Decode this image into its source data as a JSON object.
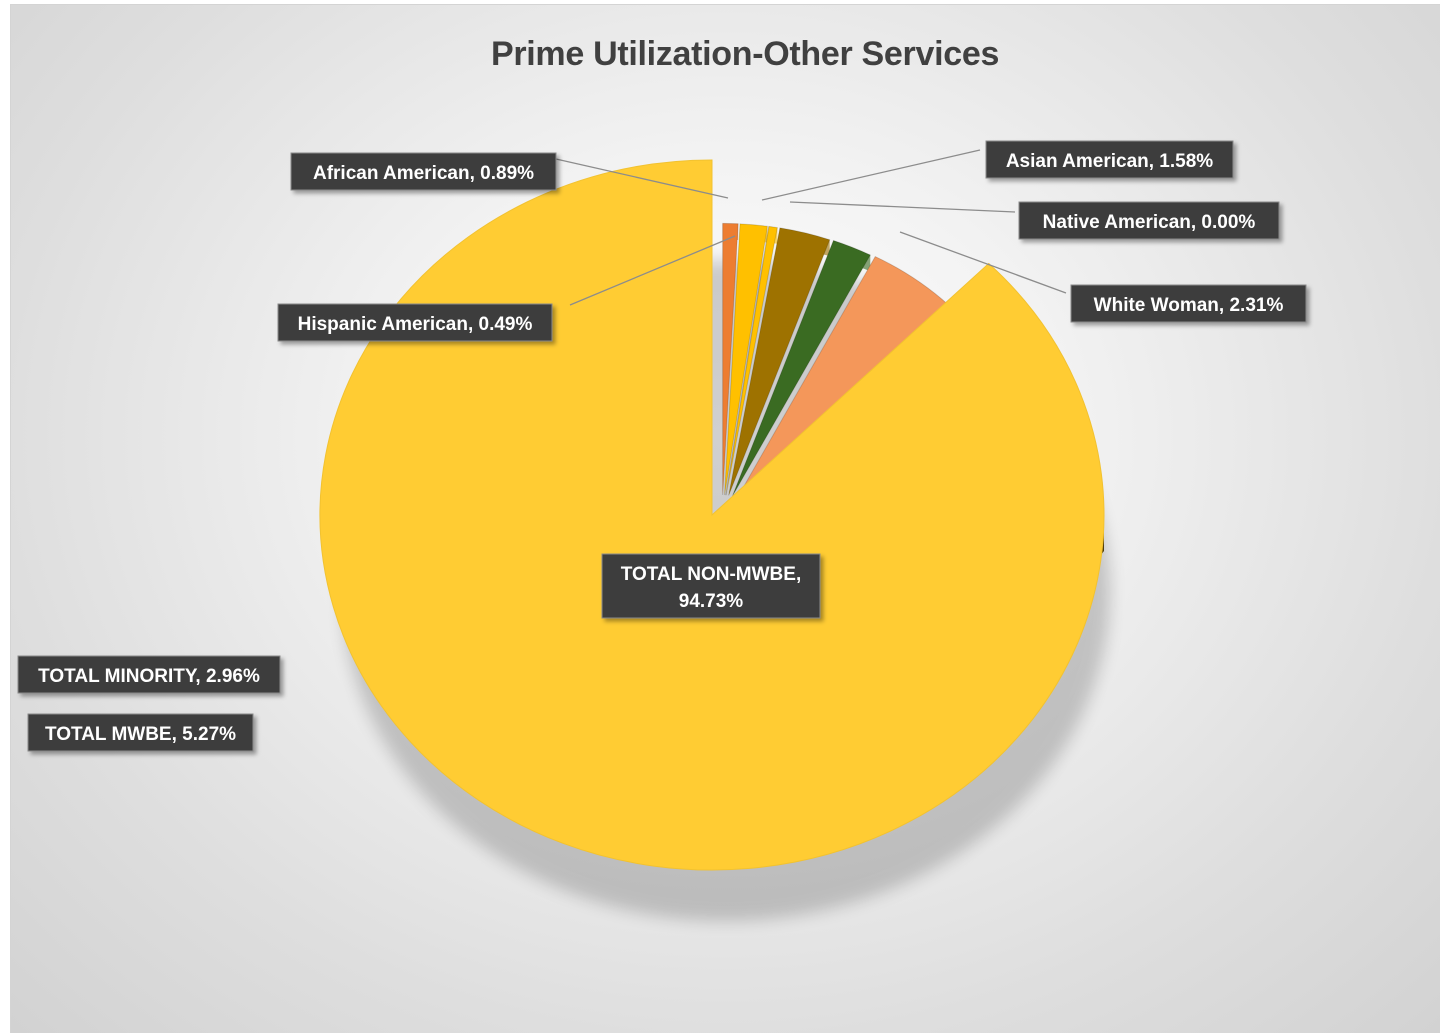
{
  "chart_data": {
    "type": "pie",
    "title": "Prime Utilization-Other Services",
    "style": "3d-exploded",
    "slices": [
      {
        "name": "African American",
        "value": 0.89,
        "label": "African American, 0.89%",
        "color": "#ed7d31"
      },
      {
        "name": "Asian American",
        "value": 1.58,
        "label": "Asian American, 1.58%",
        "color": "#ffc000"
      },
      {
        "name": "Native American",
        "value": 0.0,
        "label": "Native American, 0.00%",
        "color": "#70ad47"
      },
      {
        "name": "Hispanic American",
        "value": 0.49,
        "label": "Hispanic American, 0.49%",
        "color": "#ffc000"
      },
      {
        "name": "TOTAL MINORITY",
        "value": 2.96,
        "label": "TOTAL MINORITY, 2.96%",
        "color": "#9e7200"
      },
      {
        "name": "White Woman",
        "value": 2.31,
        "label": "White Woman, 2.31%",
        "color": "#3a6b22"
      },
      {
        "name": "TOTAL MWBE",
        "value": 5.27,
        "label": "TOTAL MWBE, 5.27%",
        "color": "#f4975a"
      },
      {
        "name": "TOTAL NON-MWBE",
        "value": 94.73,
        "label_lines": [
          "TOTAL NON-MWBE,",
          "94.73%"
        ],
        "color": "#ffcc33"
      }
    ]
  }
}
